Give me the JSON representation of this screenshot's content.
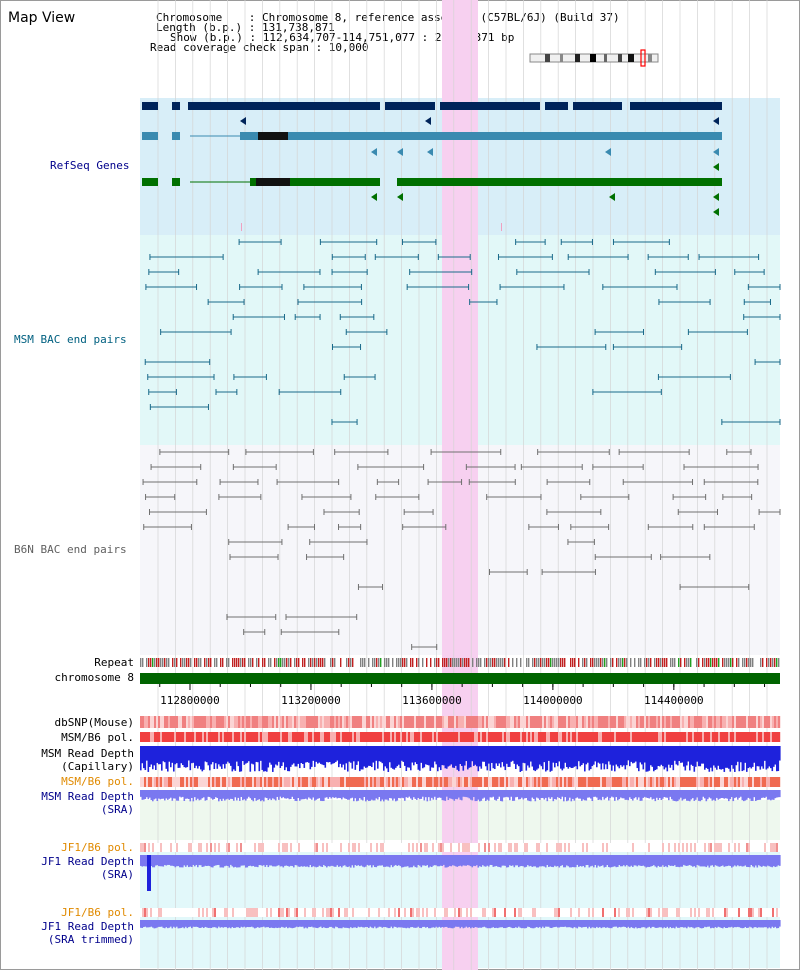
{
  "header": {
    "title": "Map View",
    "chromosome_line": "Chromosome    : Chromosome 8, reference assembly (C57BL/6J) (Build 37)",
    "length_line": "Length (b.p.) : 131,738,871",
    "show_line": "Show (b.p.) : 112,634,707-114,751,077 : 2,116,371 bp",
    "coverage_line": "Read coverage check span : 10,000"
  },
  "tracks": {
    "refseq": {
      "label": "RefSeq Genes",
      "color": "#00008b"
    },
    "msm_bac": {
      "label": "MSM BAC end pairs",
      "color": "#006080"
    },
    "b6n_bac": {
      "label": "B6N BAC end pairs",
      "color": "#606060"
    },
    "repeat": {
      "label": "Repeat",
      "color": "#000000"
    },
    "chromosome": {
      "label": "chromosome 8",
      "color": "#000000"
    },
    "dbsnp": {
      "label": "dbSNP(Mouse)",
      "color": "#000000"
    },
    "msm_b6_pol_1": {
      "label": "MSM/B6 pol.",
      "color": "#000000"
    },
    "msm_read_depth_cap": {
      "label": "MSM Read Depth\n(Capillary)",
      "color": "#000000"
    },
    "msm_b6_pol_2": {
      "label": "MSM/B6 pol.",
      "color": "#e08a00"
    },
    "msm_read_depth_sra": {
      "label": "MSM Read Depth\n(SRA)",
      "color": "#00008b"
    },
    "jf1_b6_pol_1": {
      "label": "JF1/B6 pol.",
      "color": "#e08a00"
    },
    "jf1_read_depth_sra": {
      "label": "JF1 Read Depth\n(SRA)",
      "color": "#00008b"
    },
    "jf1_b6_pol_2": {
      "label": "JF1/B6 pol.",
      "color": "#e08a00"
    },
    "jf1_read_depth_trim": {
      "label": "JF1 Read Depth\n(SRA trimmed)",
      "color": "#00008b"
    }
  },
  "axis": {
    "ticks": [
      "112800000",
      "113200000",
      "113600000",
      "114000000",
      "114400000"
    ],
    "tick_values": [
      112800000,
      113200000,
      113600000,
      114000000,
      114400000
    ]
  },
  "view_range": {
    "start": 112634707,
    "end": 114751077
  },
  "highlight_range": {
    "start": 113626000,
    "end": 113742000,
    "color": "#f7d0f0"
  },
  "colors": {
    "refseq_bg": "#d8eef8",
    "msm_bg": "#e2f8f8",
    "b6n_bg": "#f6f6fa",
    "refseq_dark": "#00245a",
    "refseq_mid": "#3a8ab0",
    "refseq_green": "#007000",
    "msm_line": "#1a6a8a",
    "b6n_line": "#707070",
    "chromosome_bar": "#006400",
    "snp_red": "#f08080",
    "pol_red": "#f04040",
    "depth_blue": "#1e22dc",
    "depth_light": "#7a78f0"
  }
}
